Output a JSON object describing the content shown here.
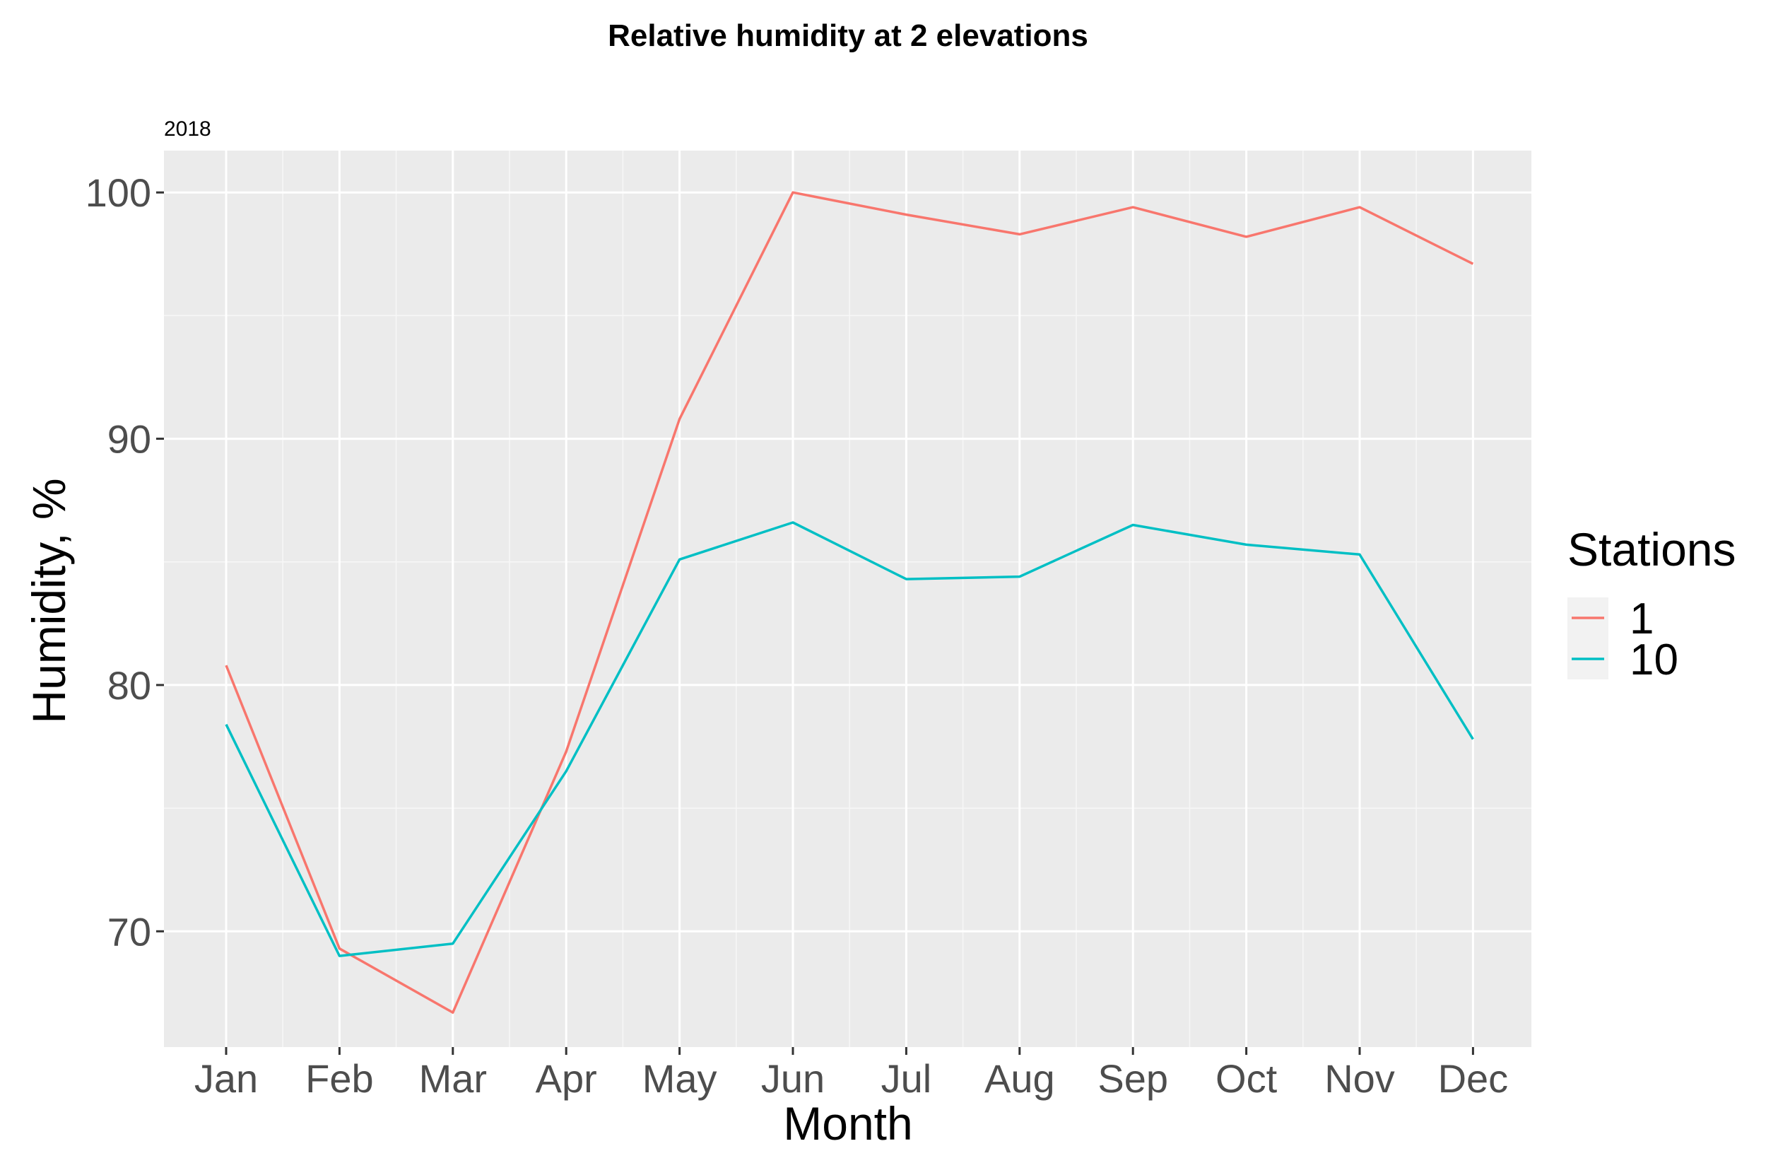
{
  "chart_data": {
    "type": "line",
    "title": "Relative humidity at 2 elevations",
    "subtitle": "2018",
    "xlabel": "Month",
    "ylabel": "Humidity, %",
    "categories": [
      "Jan",
      "Feb",
      "Mar",
      "Apr",
      "May",
      "Jun",
      "Jul",
      "Aug",
      "Sep",
      "Oct",
      "Nov",
      "Dec"
    ],
    "ylim": [
      65.3,
      101.7
    ],
    "yticks": [
      70,
      80,
      90,
      100
    ],
    "grid": true,
    "legend": {
      "title": "Stations",
      "position": "right"
    },
    "series": [
      {
        "name": "1",
        "color": "#F8766D",
        "values": [
          80.8,
          69.3,
          66.7,
          77.3,
          90.8,
          100.0,
          99.1,
          98.3,
          99.4,
          98.2,
          99.4,
          97.1
        ]
      },
      {
        "name": "10",
        "color": "#00BFC4",
        "values": [
          78.4,
          69.0,
          69.5,
          76.5,
          85.1,
          86.6,
          84.3,
          84.4,
          86.5,
          85.7,
          85.3,
          77.8
        ]
      }
    ]
  }
}
